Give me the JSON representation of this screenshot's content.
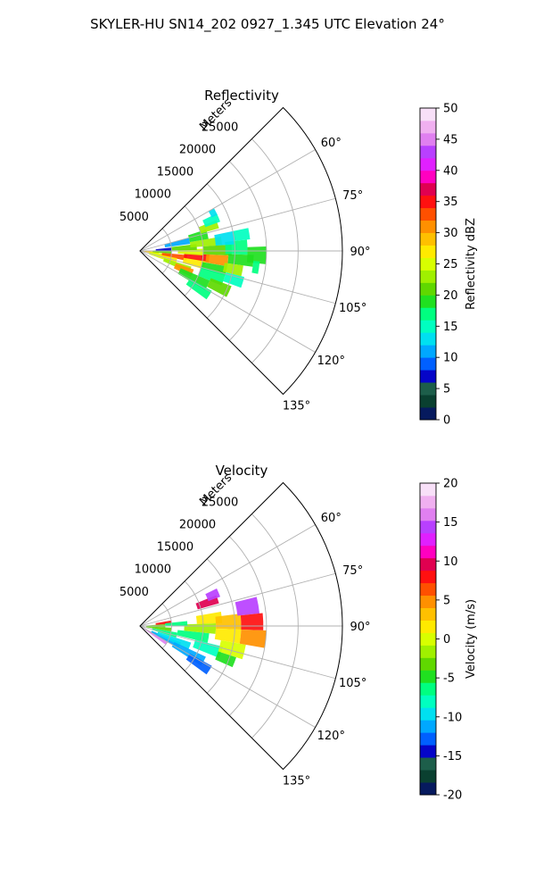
{
  "figure": {
    "title": "SKYLER-HU  SN14_202  0927_1.345 UTC Elevation 24°"
  },
  "chart_data": [
    {
      "type": "polar-sector",
      "title": "Reflectivity",
      "range_axis_label": "Meters",
      "range_ticks": [
        5000,
        10000,
        15000,
        20000,
        25000
      ],
      "range_tick_labels": [
        "5000",
        "10000",
        "15000",
        "20000",
        "25000"
      ],
      "rmax": 32000,
      "azimuth_range_deg": [
        45,
        135
      ],
      "azimuth_ticks": [
        60,
        75,
        90,
        105,
        120,
        135
      ],
      "azimuth_tick_labels": [
        "60°",
        "75°",
        "90°",
        "105°",
        "120°",
        "135°"
      ],
      "grid": true,
      "colorbar": {
        "label": "Reflectivity dBZ",
        "min": 0,
        "max": 50,
        "ticks": [
          0,
          5,
          10,
          15,
          20,
          25,
          30,
          35,
          40,
          45,
          50
        ],
        "tick_labels": [
          "0",
          "5",
          "10",
          "15",
          "20",
          "25",
          "30",
          "35",
          "40",
          "45",
          "50"
        ],
        "colors": [
          "#061a5e",
          "#0a4030",
          "#1d5e4a",
          "#0505c8",
          "#0060ff",
          "#00a8ff",
          "#00e0f0",
          "#00ffc0",
          "#00ff80",
          "#20e020",
          "#60d800",
          "#a0f000",
          "#d8ff00",
          "#ffea00",
          "#ffc000",
          "#ff9000",
          "#ff5000",
          "#ff1010",
          "#e00050",
          "#ff00c0",
          "#e020ff",
          "#b840ff",
          "#e080f0",
          "#f0b0f0",
          "#f8e0f8"
        ]
      },
      "cells": [
        {
          "az": [
            93,
            100
          ],
          "r": [
            500,
            3000
          ],
          "value": 28
        },
        {
          "az": [
            96,
            110
          ],
          "r": [
            1500,
            5000
          ],
          "value": 25
        },
        {
          "az": [
            88,
            95
          ],
          "r": [
            2000,
            5000
          ],
          "value": 21
        },
        {
          "az": [
            95,
            102
          ],
          "r": [
            3500,
            7500
          ],
          "value": 33
        },
        {
          "az": [
            101,
            107
          ],
          "r": [
            3000,
            6000
          ],
          "value": 27
        },
        {
          "az": [
            107,
            114
          ],
          "r": [
            4000,
            8500
          ],
          "value": 22
        },
        {
          "az": [
            109,
            117
          ],
          "r": [
            6000,
            9000
          ],
          "value": 30
        },
        {
          "az": [
            113,
            121
          ],
          "r": [
            7000,
            12000
          ],
          "value": 18
        },
        {
          "az": [
            119,
            126
          ],
          "r": [
            9000,
            13000
          ],
          "value": 17
        },
        {
          "az": [
            98,
            106
          ],
          "r": [
            7000,
            10500
          ],
          "value": 26
        },
        {
          "az": [
            93,
            99
          ],
          "r": [
            7000,
            11000
          ],
          "value": 35
        },
        {
          "az": [
            88,
            94
          ],
          "r": [
            6000,
            10000
          ],
          "value": 24
        },
        {
          "az": [
            83,
            89
          ],
          "r": [
            5000,
            9000
          ],
          "value": 21
        },
        {
          "az": [
            80,
            86
          ],
          "r": [
            8000,
            13000
          ],
          "value": 23
        },
        {
          "az": [
            86,
            93
          ],
          "r": [
            10000,
            14500
          ],
          "value": 20
        },
        {
          "az": [
            93,
            100
          ],
          "r": [
            10500,
            14000
          ],
          "value": 31
        },
        {
          "az": [
            100,
            106
          ],
          "r": [
            10000,
            14000
          ],
          "value": 19
        },
        {
          "az": [
            105,
            113
          ],
          "r": [
            10000,
            14000
          ],
          "value": 16
        },
        {
          "az": [
            111,
            118
          ],
          "r": [
            12000,
            15500
          ],
          "value": 21
        },
        {
          "az": [
            84,
            92
          ],
          "r": [
            13500,
            17000
          ],
          "value": 17
        },
        {
          "az": [
            92,
            98
          ],
          "r": [
            14000,
            18000
          ],
          "value": 19
        },
        {
          "az": [
            98,
            104
          ],
          "r": [
            13500,
            16500
          ],
          "value": 22
        },
        {
          "az": [
            104,
            110
          ],
          "r": [
            14000,
            17000
          ],
          "value": 15
        },
        {
          "az": [
            78,
            84
          ],
          "r": [
            15000,
            17500
          ],
          "value": 14
        },
        {
          "az": [
            88,
            96
          ],
          "r": [
            17000,
            20000
          ],
          "value": 18
        },
        {
          "az": [
            95,
            101
          ],
          "r": [
            18000,
            19000
          ],
          "value": 16
        },
        {
          "az": [
            72,
            80
          ],
          "r": [
            8000,
            11000
          ],
          "value": 19
        },
        {
          "az": [
            68,
            74
          ],
          "r": [
            10000,
            13000
          ],
          "value": 22
        },
        {
          "az": [
            64,
            70
          ],
          "r": [
            11000,
            13500
          ],
          "value": 15
        },
        {
          "az": [
            75,
            82
          ],
          "r": [
            4000,
            8000
          ],
          "value": 11
        },
        {
          "az": [
            84,
            90
          ],
          "r": [
            2500,
            5000
          ],
          "value": 6
        },
        {
          "az": [
            78,
            86
          ],
          "r": [
            12000,
            15000
          ],
          "value": 13
        },
        {
          "az": [
            60,
            65
          ],
          "r": [
            12500,
            13500
          ],
          "value": 12
        }
      ]
    },
    {
      "type": "polar-sector",
      "title": "Velocity",
      "range_axis_label": "Meters",
      "range_ticks": [
        5000,
        10000,
        15000,
        20000,
        25000
      ],
      "range_tick_labels": [
        "5000",
        "10000",
        "15000",
        "20000",
        "25000"
      ],
      "rmax": 32000,
      "azimuth_range_deg": [
        45,
        135
      ],
      "azimuth_ticks": [
        60,
        75,
        90,
        105,
        120,
        135
      ],
      "azimuth_tick_labels": [
        "60°",
        "75°",
        "90°",
        "105°",
        "120°",
        "135°"
      ],
      "grid": true,
      "colorbar": {
        "label": "Velocity (m/s)",
        "min": -20,
        "max": 20,
        "ticks": [
          -20,
          -15,
          -10,
          -5,
          0,
          5,
          10,
          15,
          20
        ],
        "tick_labels": [
          "-20",
          "-15",
          "-10",
          "-5",
          "0",
          "5",
          "10",
          "15",
          "20"
        ],
        "colors": [
          "#061a5e",
          "#0a4030",
          "#1d5e4a",
          "#0505c8",
          "#0060ff",
          "#00a8ff",
          "#00e0f0",
          "#00ffc0",
          "#00ff80",
          "#20e020",
          "#60d800",
          "#a0f000",
          "#d8ff00",
          "#ffea00",
          "#ffc000",
          "#ff9000",
          "#ff5000",
          "#ff1010",
          "#e00050",
          "#ff00c0",
          "#e020ff",
          "#b840ff",
          "#e080f0",
          "#f0b0f0",
          "#f8e0f8"
        ]
      },
      "cells": [
        {
          "az": [
            118,
            126
          ],
          "r": [
            500,
            5000
          ],
          "value": 16
        },
        {
          "az": [
            112,
            120
          ],
          "r": [
            2000,
            7000
          ],
          "value": -12
        },
        {
          "az": [
            108,
            116
          ],
          "r": [
            3000,
            8500
          ],
          "value": -9
        },
        {
          "az": [
            115,
            123
          ],
          "r": [
            6000,
            11500
          ],
          "value": -11
        },
        {
          "az": [
            119,
            126
          ],
          "r": [
            9000,
            13000
          ],
          "value": -13
        },
        {
          "az": [
            100,
            108
          ],
          "r": [
            2000,
            6000
          ],
          "value": -6
        },
        {
          "az": [
            93,
            100
          ],
          "r": [
            1000,
            5000
          ],
          "value": -4
        },
        {
          "az": [
            86,
            93
          ],
          "r": [
            1000,
            4000
          ],
          "value": -3
        },
        {
          "az": [
            96,
            104
          ],
          "r": [
            6000,
            11000
          ],
          "value": -7
        },
        {
          "az": [
            104,
            112
          ],
          "r": [
            9000,
            13500
          ],
          "value": -8
        },
        {
          "az": [
            88,
            96
          ],
          "r": [
            7000,
            12000
          ],
          "value": -2
        },
        {
          "az": [
            80,
            88
          ],
          "r": [
            9000,
            13000
          ],
          "value": 1
        },
        {
          "az": [
            83,
            92
          ],
          "r": [
            12000,
            16000
          ],
          "value": 3
        },
        {
          "az": [
            92,
            100
          ],
          "r": [
            12000,
            16000
          ],
          "value": 2
        },
        {
          "az": [
            100,
            108
          ],
          "r": [
            13000,
            17000
          ],
          "value": 0
        },
        {
          "az": [
            76,
            84
          ],
          "r": [
            15500,
            19000
          ],
          "value": 15
        },
        {
          "az": [
            84,
            92
          ],
          "r": [
            16000,
            19500
          ],
          "value": 8
        },
        {
          "az": [
            92,
            100
          ],
          "r": [
            16000,
            20000
          ],
          "value": 5
        },
        {
          "az": [
            68,
            74
          ],
          "r": [
            9500,
            13000
          ],
          "value": 10
        },
        {
          "az": [
            64,
            70
          ],
          "r": [
            11500,
            13500
          ],
          "value": 15
        },
        {
          "az": [
            80,
            86
          ],
          "r": [
            2500,
            5000
          ],
          "value": 8
        },
        {
          "az": [
            84,
            90
          ],
          "r": [
            4000,
            7500
          ],
          "value": -6
        },
        {
          "az": [
            108,
            114
          ],
          "r": [
            13000,
            16000
          ],
          "value": -5
        }
      ]
    }
  ]
}
